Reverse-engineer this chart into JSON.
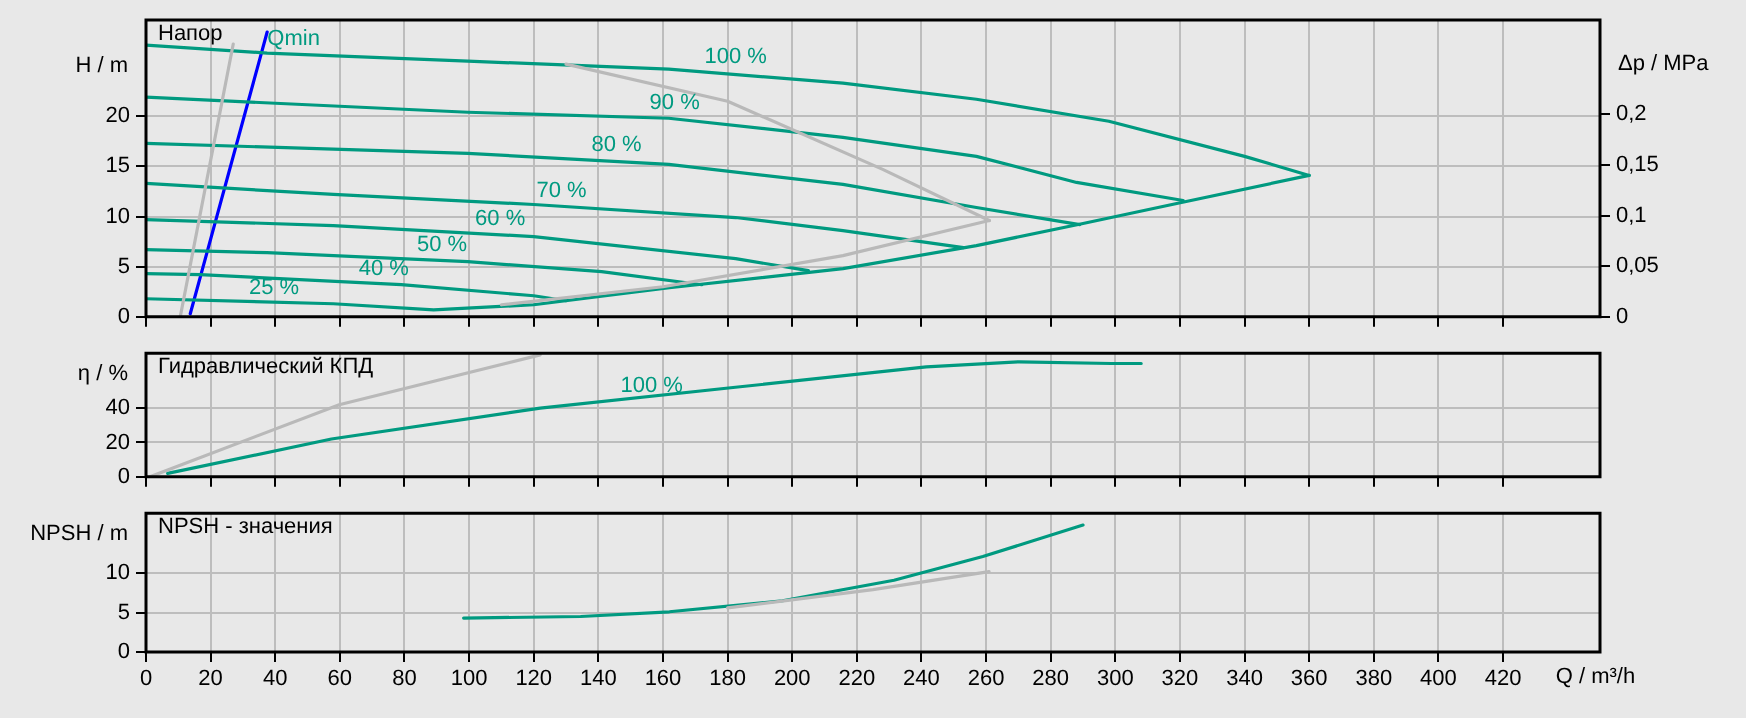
{
  "chart_data": [
    {
      "type": "line",
      "ylabel": "H / m",
      "y2label": "Δp / MPa",
      "annotations": [
        "Напор",
        {
          "text": "100 %",
          "x": 171,
          "y": 24.5
        },
        {
          "text": "90 %",
          "x": 154,
          "y": 19.9
        },
        {
          "text": "80 %",
          "x": 136,
          "y": 15.7
        },
        {
          "text": "70 %",
          "x": 119,
          "y": 11.2
        },
        {
          "text": "60 %",
          "x": 100,
          "y": 8.4
        },
        {
          "text": "50 %",
          "x": 82,
          "y": 5.8
        },
        {
          "text": "40 %",
          "x": 64,
          "y": 3.4
        },
        {
          "text": "25 %",
          "x": 30,
          "y": 1.5
        },
        {
          "text": "Qmin",
          "x": 35.7,
          "y": 26.3
        }
      ],
      "xlim": [
        0,
        450
      ],
      "xticks": [
        0,
        20,
        40,
        60,
        80,
        100,
        120,
        140,
        160,
        180,
        200,
        220,
        240,
        260,
        280,
        300,
        320,
        340,
        360,
        380,
        400,
        420
      ],
      "ylim": [
        0,
        29.6
      ],
      "yticks": [
        0,
        5,
        10,
        15,
        20
      ],
      "y2lim": [
        0,
        0.293
      ],
      "y2ticks": [
        0,
        {
          "value": 0.05,
          "label": "0,05"
        },
        {
          "value": 0.1,
          "label": "0,1"
        },
        {
          "value": 0.15,
          "label": "0,15"
        },
        {
          "value": 0.2,
          "label": "0,2"
        }
      ],
      "grid": true,
      "marker": "none",
      "tick_labels": "y",
      "series": [
        {
          "color": "#b9b9b9",
          "x": [
            10.6,
            27
          ],
          "values": [
            0,
            27.2
          ]
        },
        {
          "color": "#b9b9b9",
          "x": [
            130,
            180,
            228,
            261
          ],
          "values": [
            25.2,
            21.5,
            14.7,
            9.6
          ]
        },
        {
          "color": "#b9b9b9",
          "x": [
            110,
            160,
            215.7,
            261
          ],
          "values": [
            1.2,
            3.0,
            6.1,
            9.6
          ]
        },
        {
          "color": "#009a80",
          "x": [
            0,
            37.5,
            99.6,
            161.8,
            215.7,
            257,
            298,
            340,
            360
          ],
          "values": [
            27.1,
            26.3,
            25.5,
            24.7,
            23.3,
            21.7,
            19.5,
            16.0,
            14.1
          ]
        },
        {
          "color": "#009a80",
          "x": [
            0,
            58,
            89,
            120,
            162,
            215.7,
            257,
            290,
            319,
            360
          ],
          "values": [
            1.8,
            1.3,
            0.7,
            1.2,
            2.9,
            4.8,
            7.1,
            9.3,
            11.3,
            14.1
          ]
        },
        {
          "color": "#009a80",
          "x": [
            0,
            99.6,
            161.8,
            215.7,
            257,
            288,
            321
          ],
          "values": [
            21.9,
            20.4,
            19.8,
            17.9,
            16.0,
            13.4,
            11.6
          ]
        },
        {
          "color": "#009a80",
          "x": [
            0,
            99.6,
            161.8,
            215.7,
            257,
            289
          ],
          "values": [
            17.3,
            16.3,
            15.2,
            13.2,
            10.9,
            9.2
          ]
        },
        {
          "color": "#009a80",
          "x": [
            0,
            58,
            120,
            182.5,
            215.7,
            253
          ],
          "values": [
            13.3,
            12.2,
            11.2,
            9.9,
            8.6,
            6.9
          ]
        },
        {
          "color": "#009a80",
          "x": [
            0,
            58,
            120,
            182.5,
            205
          ],
          "values": [
            9.7,
            9.1,
            8.0,
            5.8,
            4.6
          ]
        },
        {
          "color": "#009a80",
          "x": [
            0,
            37.5,
            99.6,
            141,
            172
          ],
          "values": [
            6.7,
            6.4,
            5.5,
            4.5,
            3.2
          ]
        },
        {
          "color": "#009a80",
          "x": [
            0,
            16.8,
            79,
            120,
            130
          ],
          "values": [
            4.3,
            4.2,
            3.2,
            2.1,
            1.6
          ]
        },
        {
          "color": "#0000ff",
          "x": [
            13.7,
            37.5
          ],
          "values": [
            0.3,
            28.4
          ]
        }
      ]
    },
    {
      "type": "line",
      "ylabel": "η / %",
      "annotations": [
        "Гидравлический КПД",
        {
          "text": "100 %",
          "x": 145,
          "y": 45
        }
      ],
      "xlim": [
        0,
        450
      ],
      "xticks": [
        0,
        20,
        40,
        60,
        80,
        100,
        120,
        140,
        160,
        180,
        200,
        220,
        240,
        260,
        280,
        300,
        320,
        340,
        360,
        380,
        400,
        420
      ],
      "ylim": [
        0,
        72
      ],
      "yticks": [
        0,
        20,
        40
      ],
      "grid": true,
      "marker": "none",
      "tick_labels": "y",
      "series": [
        {
          "color": "#b9b9b9",
          "x": [
            1.2,
            59.8,
            122
          ],
          "values": [
            0,
            42,
            71
          ]
        },
        {
          "color": "#009a80",
          "x": [
            6.7,
            57.4,
            122,
            181.7,
            241.5,
            270.2,
            298.8,
            308
          ],
          "values": [
            2,
            22,
            40,
            52,
            64,
            67,
            66,
            66
          ]
        }
      ]
    },
    {
      "type": "line",
      "ylabel": "NPSH / m",
      "xlabel": "Q / m³/h",
      "annotations": [
        "NPSH - значения"
      ],
      "xlim": [
        0,
        450
      ],
      "xticks": [
        0,
        20,
        40,
        60,
        80,
        100,
        120,
        140,
        160,
        180,
        200,
        220,
        240,
        260,
        280,
        300,
        320,
        340,
        360,
        380,
        400,
        420
      ],
      "ylim": [
        0,
        17.6
      ],
      "yticks": [
        0,
        5,
        10
      ],
      "grid": true,
      "marker": "none",
      "series": [
        {
          "color": "#b9b9b9",
          "x": [
            180,
            225,
            260.9
          ],
          "values": [
            5.6,
            7.9,
            10.2
          ]
        },
        {
          "color": "#009a80",
          "x": [
            98.3,
            134.5,
            162,
            197,
            231.5,
            259,
            290
          ],
          "values": [
            4.3,
            4.5,
            5.1,
            6.5,
            9.1,
            12.1,
            16.1
          ]
        }
      ]
    }
  ]
}
